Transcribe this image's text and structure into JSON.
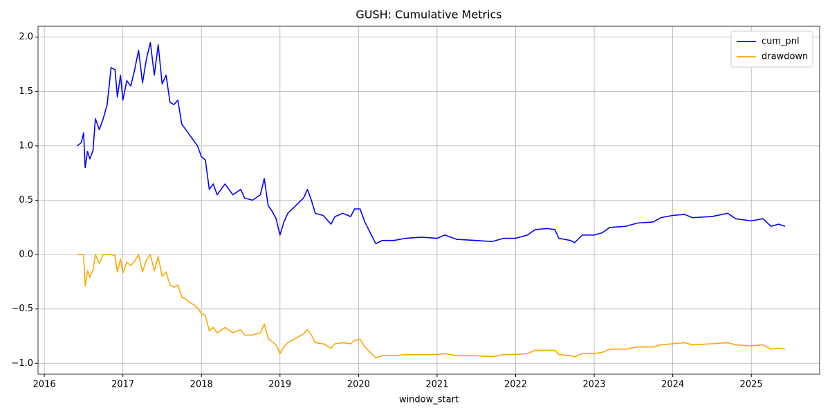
{
  "chart_data": {
    "type": "line",
    "title": "GUSH: Cumulative Metrics",
    "x_label": "window_start",
    "x": [
      2016.42,
      2016.47,
      2016.5,
      2016.52,
      2016.55,
      2016.58,
      2016.62,
      2016.65,
      2016.7,
      2016.75,
      2016.8,
      2016.85,
      2016.9,
      2016.93,
      2016.97,
      2017.0,
      2017.05,
      2017.1,
      2017.15,
      2017.2,
      2017.25,
      2017.3,
      2017.35,
      2017.4,
      2017.45,
      2017.5,
      2017.55,
      2017.6,
      2017.65,
      2017.7,
      2017.75,
      2017.8,
      2017.85,
      2017.9,
      2017.95,
      2018.0,
      2018.05,
      2018.1,
      2018.15,
      2018.2,
      2018.3,
      2018.4,
      2018.5,
      2018.55,
      2018.65,
      2018.75,
      2018.8,
      2018.85,
      2018.9,
      2018.95,
      2019.0,
      2019.05,
      2019.1,
      2019.2,
      2019.3,
      2019.35,
      2019.4,
      2019.45,
      2019.55,
      2019.65,
      2019.7,
      2019.8,
      2019.9,
      2019.95,
      2020.02,
      2020.08,
      2020.15,
      2020.22,
      2020.3,
      2020.45,
      2020.6,
      2020.8,
      2021.0,
      2021.1,
      2021.25,
      2021.5,
      2021.7,
      2021.85,
      2022.0,
      2022.15,
      2022.25,
      2022.4,
      2022.5,
      2022.55,
      2022.7,
      2022.75,
      2022.85,
      2023.0,
      2023.1,
      2023.2,
      2023.4,
      2023.55,
      2023.75,
      2023.85,
      2024.0,
      2024.15,
      2024.25,
      2024.5,
      2024.7,
      2024.8,
      2025.0,
      2025.15,
      2025.25,
      2025.35,
      2025.43
    ],
    "series": [
      {
        "name": "cum_pnl",
        "color": "#0000ff",
        "values": [
          1.0,
          1.03,
          1.12,
          0.8,
          0.95,
          0.88,
          0.96,
          1.25,
          1.15,
          1.25,
          1.38,
          1.72,
          1.7,
          1.45,
          1.65,
          1.42,
          1.6,
          1.55,
          1.7,
          1.88,
          1.58,
          1.8,
          1.95,
          1.65,
          1.93,
          1.57,
          1.65,
          1.4,
          1.38,
          1.42,
          1.2,
          1.15,
          1.1,
          1.05,
          1.0,
          0.9,
          0.87,
          0.6,
          0.65,
          0.55,
          0.65,
          0.55,
          0.6,
          0.52,
          0.5,
          0.55,
          0.7,
          0.45,
          0.4,
          0.33,
          0.18,
          0.3,
          0.38,
          0.45,
          0.52,
          0.6,
          0.5,
          0.38,
          0.36,
          0.28,
          0.35,
          0.38,
          0.35,
          0.42,
          0.42,
          0.3,
          0.2,
          0.1,
          0.13,
          0.13,
          0.15,
          0.16,
          0.15,
          0.18,
          0.14,
          0.13,
          0.12,
          0.15,
          0.15,
          0.18,
          0.23,
          0.24,
          0.23,
          0.15,
          0.13,
          0.11,
          0.18,
          0.18,
          0.2,
          0.25,
          0.26,
          0.29,
          0.3,
          0.34,
          0.36,
          0.37,
          0.34,
          0.35,
          0.38,
          0.33,
          0.31,
          0.33,
          0.26,
          0.28,
          0.26
        ]
      },
      {
        "name": "drawdown",
        "color": "#ffa500",
        "values": [
          0.0,
          0.0,
          0.0,
          -0.29,
          -0.15,
          -0.21,
          -0.14,
          0.0,
          -0.08,
          0.0,
          0.0,
          0.0,
          -0.01,
          -0.16,
          -0.04,
          -0.17,
          -0.07,
          -0.1,
          -0.06,
          0.0,
          -0.16,
          -0.05,
          0.0,
          -0.15,
          -0.02,
          -0.2,
          -0.16,
          -0.28,
          -0.3,
          -0.28,
          -0.39,
          -0.41,
          -0.44,
          -0.46,
          -0.49,
          -0.54,
          -0.56,
          -0.7,
          -0.67,
          -0.72,
          -0.67,
          -0.72,
          -0.69,
          -0.74,
          -0.74,
          -0.72,
          -0.64,
          -0.77,
          -0.8,
          -0.83,
          -0.91,
          -0.85,
          -0.81,
          -0.77,
          -0.73,
          -0.69,
          -0.74,
          -0.81,
          -0.82,
          -0.86,
          -0.82,
          -0.81,
          -0.82,
          -0.79,
          -0.78,
          -0.85,
          -0.9,
          -0.95,
          -0.93,
          -0.93,
          -0.92,
          -0.92,
          -0.92,
          -0.91,
          -0.93,
          -0.93,
          -0.94,
          -0.92,
          -0.92,
          -0.91,
          -0.88,
          -0.88,
          -0.88,
          -0.92,
          -0.93,
          -0.94,
          -0.91,
          -0.91,
          -0.9,
          -0.87,
          -0.87,
          -0.85,
          -0.85,
          -0.83,
          -0.82,
          -0.81,
          -0.83,
          -0.82,
          -0.81,
          -0.83,
          -0.84,
          -0.83,
          -0.87,
          -0.86,
          -0.87
        ]
      }
    ],
    "xlim": [
      2015.92,
      2025.87
    ],
    "xticks": [
      2016,
      2017,
      2018,
      2019,
      2020,
      2021,
      2022,
      2023,
      2024,
      2025
    ],
    "ylim": [
      -1.1,
      2.1
    ],
    "yticks": [
      {
        "value": -1,
        "label": "−1.0"
      },
      {
        "value": -0.5,
        "label": "−0.5"
      },
      {
        "value": 0,
        "label": "0.0"
      },
      0.5,
      {
        "value": 1,
        "label": "1.0"
      },
      1.5,
      {
        "value": 2,
        "label": "2.0"
      }
    ],
    "grid": true,
    "legend": "upper right"
  }
}
